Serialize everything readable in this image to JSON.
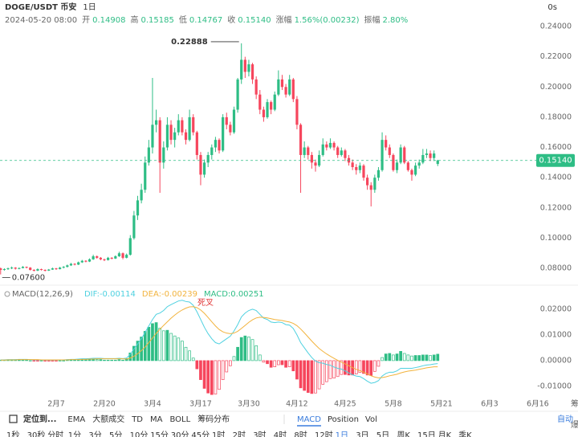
{
  "header": {
    "symbol": "DOGE/USDT 币安",
    "interval": "1日",
    "timer": "0s",
    "date": "2024-05-20 08:00",
    "fields": [
      [
        "开",
        "0.14908"
      ],
      [
        "高",
        "0.15185"
      ],
      [
        "低",
        "0.14767"
      ],
      [
        "收",
        "0.15140"
      ],
      [
        "涨幅",
        "1.56%(0.00232)"
      ],
      [
        "振幅",
        "2.80%"
      ]
    ]
  },
  "chart_data": [
    {
      "type": "candlestick",
      "up_color": "#2ebd85",
      "down_color": "#f6465d",
      "xlim": [
        -0.17,
        155
      ],
      "ylim": [
        0.0742,
        0.2416
      ],
      "yticks": [
        {
          "value": 0.08,
          "label": "0.08000"
        },
        {
          "value": 0.1,
          "label": "0.10000"
        },
        {
          "value": 0.12,
          "label": "0.12000"
        },
        {
          "value": 0.14,
          "label": "0.14000"
        },
        {
          "value": 0.16,
          "label": "0.16000"
        },
        {
          "value": 0.18,
          "label": "0.18000"
        },
        {
          "value": 0.2,
          "label": "0.20000"
        },
        {
          "value": 0.22,
          "label": "0.22000"
        },
        {
          "value": 0.24,
          "label": "0.24000"
        }
      ],
      "xticks": [
        {
          "value": 15,
          "label": "2月7"
        },
        {
          "value": 28,
          "label": "2月20"
        },
        {
          "value": 41,
          "label": "3月4"
        },
        {
          "value": 54,
          "label": "3月17"
        },
        {
          "value": 67,
          "label": "3月30"
        },
        {
          "value": 80,
          "label": "4月12"
        },
        {
          "value": 93,
          "label": "4月25"
        },
        {
          "value": 106,
          "label": "5月8"
        },
        {
          "value": 119,
          "label": "5月21"
        },
        {
          "value": 132,
          "label": "6月3"
        },
        {
          "value": 145,
          "label": "6月16"
        }
      ],
      "max_label": "0.22888",
      "min_label": "0.07600",
      "last_label": "0.15140",
      "candles": [
        [
          0.08,
          0.0805,
          0.076,
          0.079
        ],
        [
          0.079,
          0.08,
          0.0785,
          0.0795
        ],
        [
          0.0795,
          0.0805,
          0.079,
          0.08
        ],
        [
          0.08,
          0.0812,
          0.0795,
          0.0805
        ],
        [
          0.0805,
          0.0808,
          0.0792,
          0.0798
        ],
        [
          0.0798,
          0.0806,
          0.0794,
          0.0802
        ],
        [
          0.0802,
          0.0815,
          0.08,
          0.081
        ],
        [
          0.081,
          0.0812,
          0.08,
          0.0805
        ],
        [
          0.0805,
          0.0808,
          0.0786,
          0.079
        ],
        [
          0.079,
          0.0794,
          0.078,
          0.0785
        ],
        [
          0.0785,
          0.08,
          0.0782,
          0.0795
        ],
        [
          0.0795,
          0.0798,
          0.0786,
          0.079
        ],
        [
          0.079,
          0.0793,
          0.078,
          0.0785
        ],
        [
          0.0785,
          0.0796,
          0.0783,
          0.0792
        ],
        [
          0.0792,
          0.0805,
          0.079,
          0.08
        ],
        [
          0.08,
          0.0803,
          0.079,
          0.0795
        ],
        [
          0.0795,
          0.081,
          0.0793,
          0.0805
        ],
        [
          0.0805,
          0.0815,
          0.08,
          0.081
        ],
        [
          0.081,
          0.0825,
          0.0806,
          0.082
        ],
        [
          0.082,
          0.0836,
          0.0816,
          0.083
        ],
        [
          0.083,
          0.0834,
          0.082,
          0.0825
        ],
        [
          0.0825,
          0.0845,
          0.0822,
          0.084
        ],
        [
          0.084,
          0.0856,
          0.0836,
          0.085
        ],
        [
          0.085,
          0.0854,
          0.084,
          0.0845
        ],
        [
          0.0845,
          0.0866,
          0.0842,
          0.086
        ],
        [
          0.086,
          0.089,
          0.0856,
          0.088
        ],
        [
          0.088,
          0.0885,
          0.0864,
          0.087
        ],
        [
          0.087,
          0.0875,
          0.0854,
          0.086
        ],
        [
          0.086,
          0.0864,
          0.0848,
          0.0855
        ],
        [
          0.0855,
          0.0876,
          0.0852,
          0.087
        ],
        [
          0.087,
          0.0874,
          0.086,
          0.0865
        ],
        [
          0.0865,
          0.0886,
          0.0862,
          0.088
        ],
        [
          0.088,
          0.091,
          0.0876,
          0.09
        ],
        [
          0.09,
          0.0905,
          0.086,
          0.087
        ],
        [
          0.087,
          0.0898,
          0.0866,
          0.089
        ],
        [
          0.089,
          0.102,
          0.0885,
          0.1
        ],
        [
          0.1,
          0.118,
          0.099,
          0.115
        ],
        [
          0.115,
          0.128,
          0.112,
          0.125
        ],
        [
          0.125,
          0.136,
          0.123,
          0.132
        ],
        [
          0.132,
          0.154,
          0.13,
          0.15
        ],
        [
          0.15,
          0.165,
          0.148,
          0.16
        ],
        [
          0.16,
          0.206,
          0.156,
          0.175
        ],
        [
          0.175,
          0.185,
          0.17,
          0.178
        ],
        [
          0.178,
          0.18,
          0.13,
          0.15
        ],
        [
          0.15,
          0.164,
          0.146,
          0.16
        ],
        [
          0.16,
          0.18,
          0.158,
          0.175
        ],
        [
          0.175,
          0.178,
          0.162,
          0.165
        ],
        [
          0.165,
          0.173,
          0.16,
          0.17
        ],
        [
          0.17,
          0.182,
          0.168,
          0.178
        ],
        [
          0.178,
          0.18,
          0.168,
          0.17
        ],
        [
          0.17,
          0.172,
          0.162,
          0.165
        ],
        [
          0.165,
          0.185,
          0.164,
          0.18
        ],
        [
          0.18,
          0.182,
          0.168,
          0.17
        ],
        [
          0.17,
          0.171,
          0.152,
          0.155
        ],
        [
          0.155,
          0.157,
          0.135,
          0.142
        ],
        [
          0.142,
          0.152,
          0.14,
          0.15
        ],
        [
          0.15,
          0.157,
          0.147,
          0.155
        ],
        [
          0.155,
          0.162,
          0.152,
          0.16
        ],
        [
          0.16,
          0.167,
          0.157,
          0.165
        ],
        [
          0.165,
          0.166,
          0.156,
          0.158
        ],
        [
          0.158,
          0.182,
          0.157,
          0.18
        ],
        [
          0.18,
          0.183,
          0.172,
          0.175
        ],
        [
          0.175,
          0.177,
          0.168,
          0.17
        ],
        [
          0.17,
          0.187,
          0.169,
          0.185
        ],
        [
          0.185,
          0.206,
          0.183,
          0.205
        ],
        [
          0.205,
          0.22888,
          0.202,
          0.218
        ],
        [
          0.218,
          0.22,
          0.206,
          0.21
        ],
        [
          0.21,
          0.218,
          0.207,
          0.215
        ],
        [
          0.215,
          0.216,
          0.202,
          0.205
        ],
        [
          0.205,
          0.207,
          0.192,
          0.195
        ],
        [
          0.195,
          0.198,
          0.182,
          0.185
        ],
        [
          0.185,
          0.187,
          0.177,
          0.18
        ],
        [
          0.18,
          0.192,
          0.179,
          0.19
        ],
        [
          0.19,
          0.191,
          0.182,
          0.185
        ],
        [
          0.185,
          0.197,
          0.184,
          0.195
        ],
        [
          0.195,
          0.211,
          0.194,
          0.205
        ],
        [
          0.205,
          0.208,
          0.198,
          0.2
        ],
        [
          0.2,
          0.202,
          0.193,
          0.195
        ],
        [
          0.195,
          0.208,
          0.194,
          0.205
        ],
        [
          0.205,
          0.206,
          0.19,
          0.192
        ],
        [
          0.192,
          0.194,
          0.172,
          0.175
        ],
        [
          0.175,
          0.176,
          0.13,
          0.155
        ],
        [
          0.155,
          0.164,
          0.153,
          0.16
        ],
        [
          0.16,
          0.161,
          0.152,
          0.155
        ],
        [
          0.155,
          0.157,
          0.146,
          0.15
        ],
        [
          0.15,
          0.152,
          0.144,
          0.148
        ],
        [
          0.148,
          0.158,
          0.147,
          0.155
        ],
        [
          0.155,
          0.166,
          0.154,
          0.162
        ],
        [
          0.162,
          0.164,
          0.158,
          0.16
        ],
        [
          0.16,
          0.166,
          0.159,
          0.163
        ],
        [
          0.163,
          0.164,
          0.158,
          0.16
        ],
        [
          0.16,
          0.161,
          0.153,
          0.155
        ],
        [
          0.155,
          0.16,
          0.154,
          0.158
        ],
        [
          0.158,
          0.159,
          0.151,
          0.153
        ],
        [
          0.153,
          0.155,
          0.148,
          0.15
        ],
        [
          0.15,
          0.152,
          0.145,
          0.147
        ],
        [
          0.147,
          0.149,
          0.142,
          0.145
        ],
        [
          0.145,
          0.15,
          0.143,
          0.148
        ],
        [
          0.148,
          0.149,
          0.138,
          0.14
        ],
        [
          0.14,
          0.142,
          0.132,
          0.135
        ],
        [
          0.135,
          0.137,
          0.121,
          0.132
        ],
        [
          0.132,
          0.142,
          0.13,
          0.14
        ],
        [
          0.14,
          0.147,
          0.138,
          0.145
        ],
        [
          0.145,
          0.17,
          0.144,
          0.165
        ],
        [
          0.165,
          0.168,
          0.158,
          0.16
        ],
        [
          0.16,
          0.162,
          0.153,
          0.155
        ],
        [
          0.155,
          0.156,
          0.144,
          0.145
        ],
        [
          0.145,
          0.152,
          0.143,
          0.15
        ],
        [
          0.15,
          0.162,
          0.149,
          0.16
        ],
        [
          0.16,
          0.161,
          0.149,
          0.15
        ],
        [
          0.15,
          0.151,
          0.144,
          0.145
        ],
        [
          0.145,
          0.146,
          0.138,
          0.142
        ],
        [
          0.142,
          0.15,
          0.141,
          0.148
        ],
        [
          0.148,
          0.152,
          0.146,
          0.15
        ],
        [
          0.15,
          0.159,
          0.149,
          0.155
        ],
        [
          0.155,
          0.159,
          0.153,
          0.156
        ],
        [
          0.156,
          0.158,
          0.151,
          0.153
        ],
        [
          0.153,
          0.158,
          0.151,
          0.156
        ],
        [
          0.14908,
          0.15185,
          0.14767,
          0.1514
        ]
      ]
    },
    {
      "type": "macd",
      "title": "MACD(12,26,9)",
      "annotation": "死叉",
      "legend": [
        "DIF:-0.00114",
        "DEA:-0.00239",
        "MACD:0.00251"
      ],
      "colors": {
        "dif": "#4fd1e0",
        "dea": "#f2b33d",
        "up": "#2ebd85",
        "down": "#f6465d"
      },
      "ylim": [
        -0.0144,
        0.0231
      ],
      "yticks": [
        {
          "value": 0.02,
          "label": "0.02000"
        },
        {
          "value": 0.01,
          "label": "0.01000"
        },
        {
          "value": 0,
          "label": "0.00000"
        },
        {
          "value": -0.01,
          "label": "-0.01000"
        }
      ],
      "dif": [
        0.0003,
        0.0003,
        0.0004,
        0.0004,
        0.0004,
        0.0005,
        0.0005,
        0.0005,
        0.0004,
        0.0003,
        0.0003,
        0.0003,
        0.0002,
        0.0002,
        0.0002,
        0.0002,
        0.0003,
        0.0003,
        0.0004,
        0.0005,
        0.0005,
        0.0006,
        0.0007,
        0.0007,
        0.0008,
        0.0009,
        0.0009,
        0.0009,
        0.0008,
        0.0008,
        0.0008,
        0.0008,
        0.0009,
        0.0008,
        0.001,
        0.0025,
        0.0045,
        0.0065,
        0.0085,
        0.011,
        0.0135,
        0.016,
        0.018,
        0.0185,
        0.0195,
        0.021,
        0.0218,
        0.0225,
        0.0232,
        0.0235,
        0.023,
        0.0228,
        0.0215,
        0.019,
        0.016,
        0.013,
        0.0105,
        0.0085,
        0.007,
        0.0065,
        0.0075,
        0.0085,
        0.0095,
        0.0115,
        0.014,
        0.017,
        0.0185,
        0.0195,
        0.02,
        0.0195,
        0.018,
        0.0165,
        0.016,
        0.015,
        0.0148,
        0.015,
        0.0148,
        0.014,
        0.0138,
        0.0125,
        0.01,
        0.007,
        0.005,
        0.003,
        0.0012,
        -0.0002,
        -0.0008,
        -0.001,
        -0.0015,
        -0.0018,
        -0.0025,
        -0.003,
        -0.0033,
        -0.004,
        -0.0048,
        -0.0055,
        -0.006,
        -0.0062,
        -0.007,
        -0.008,
        -0.0088,
        -0.0085,
        -0.0078,
        -0.006,
        -0.005,
        -0.0045,
        -0.0045,
        -0.004,
        -0.003,
        -0.003,
        -0.003,
        -0.003,
        -0.0027,
        -0.0024,
        -0.002,
        -0.0017,
        -0.0016,
        -0.0013,
        -0.00114
      ],
      "dea": [
        0.0002,
        0.0002,
        0.0003,
        0.0003,
        0.0003,
        0.0004,
        0.0004,
        0.0004,
        0.0004,
        0.0004,
        0.0004,
        0.0003,
        0.0003,
        0.0003,
        0.0003,
        0.0003,
        0.0003,
        0.0003,
        0.0003,
        0.0004,
        0.0004,
        0.0004,
        0.0005,
        0.0005,
        0.0006,
        0.0006,
        0.0007,
        0.0007,
        0.0007,
        0.0007,
        0.0007,
        0.0007,
        0.0007,
        0.0007,
        0.0006,
        0.001,
        0.0017,
        0.0027,
        0.0039,
        0.0053,
        0.007,
        0.0088,
        0.0106,
        0.0122,
        0.0137,
        0.0151,
        0.0165,
        0.0177,
        0.0188,
        0.0197,
        0.0204,
        0.0209,
        0.021,
        0.0206,
        0.0197,
        0.0184,
        0.0168,
        0.0151,
        0.0135,
        0.0121,
        0.0112,
        0.0107,
        0.0105,
        0.0107,
        0.0114,
        0.0125,
        0.0137,
        0.0149,
        0.0159,
        0.0166,
        0.0169,
        0.0168,
        0.0166,
        0.0163,
        0.016,
        0.0158,
        0.0156,
        0.0153,
        0.015,
        0.0145,
        0.0136,
        0.0123,
        0.0108,
        0.0092,
        0.0076,
        0.0061,
        0.0047,
        0.0036,
        0.0026,
        0.0017,
        0.0009,
        0.0001,
        -0.0006,
        -0.0013,
        -0.002,
        -0.0027,
        -0.0034,
        -0.0039,
        -0.0045,
        -0.0052,
        -0.0059,
        -0.0064,
        -0.0067,
        -0.0066,
        -0.0063,
        -0.0059,
        -0.0056,
        -0.0053,
        -0.0048,
        -0.0044,
        -0.0041,
        -0.0039,
        -0.0037,
        -0.0034,
        -0.0031,
        -0.0028,
        -0.0026,
        -0.0024,
        -0.00239
      ],
      "macd": [
        0.0002,
        0.0002,
        0.0002,
        0.0002,
        0.0002,
        0.0002,
        0.0002,
        0.0002,
        0,
        -0.0002,
        -0.0002,
        0,
        -0.0002,
        -0.0002,
        -0.0002,
        -0.0002,
        0,
        0,
        0.0002,
        0.0002,
        0.0002,
        0.0004,
        0.0004,
        0.0004,
        0.0004,
        0.0006,
        0.0004,
        0.0004,
        0.0002,
        0.0002,
        0.0002,
        0.0002,
        0.0004,
        0.0002,
        0.0008,
        0.003,
        0.0056,
        0.0076,
        0.0092,
        0.0114,
        0.013,
        0.0144,
        0.0148,
        0.0126,
        0.0116,
        0.0118,
        0.0106,
        0.0096,
        0.0088,
        0.0076,
        0.0052,
        0.0038,
        0.001,
        -0.0032,
        -0.0074,
        -0.0108,
        -0.0126,
        -0.0132,
        -0.013,
        -0.0112,
        -0.0074,
        -0.0044,
        -0.002,
        0.0016,
        0.0052,
        0.009,
        0.0096,
        0.0092,
        0.0082,
        0.0058,
        0.0022,
        -0.0006,
        -0.0012,
        -0.0026,
        -0.0024,
        -0.0016,
        -0.0016,
        -0.0026,
        -0.0024,
        -0.004,
        -0.0072,
        -0.0106,
        -0.0116,
        -0.0124,
        -0.0128,
        -0.0126,
        -0.011,
        -0.0092,
        -0.0082,
        -0.007,
        -0.0068,
        -0.0062,
        -0.0054,
        -0.0054,
        -0.0056,
        -0.0056,
        -0.0052,
        -0.0046,
        -0.005,
        -0.0056,
        -0.0058,
        -0.0042,
        -0.0022,
        0.0012,
        0.0026,
        0.0028,
        0.0022,
        0.0026,
        0.0036,
        0.0028,
        0.0022,
        0.0018,
        0.002,
        0.002,
        0.0022,
        0.0022,
        0.002,
        0.0022,
        0.00251
      ]
    }
  ],
  "side": [
    "筹",
    "爆"
  ],
  "toolbar": {
    "locate": "定位到...",
    "indicators": [
      "EMA",
      "大额成交",
      "TD",
      "MA",
      "BOLL",
      "筹码分布"
    ],
    "sub_indicators": [
      "MACD",
      "Position",
      "Vol"
    ],
    "auto": "自动"
  },
  "timeframes": [
    "1秒",
    "30秒",
    "分时",
    "1分",
    "3分",
    "5分",
    "10分",
    "15分",
    "30分",
    "45分",
    "1时",
    "2时",
    "3时",
    "4时",
    "8时",
    "12时",
    "1日",
    "3日",
    "5日",
    "周K",
    "15日",
    "月K",
    "季K"
  ]
}
